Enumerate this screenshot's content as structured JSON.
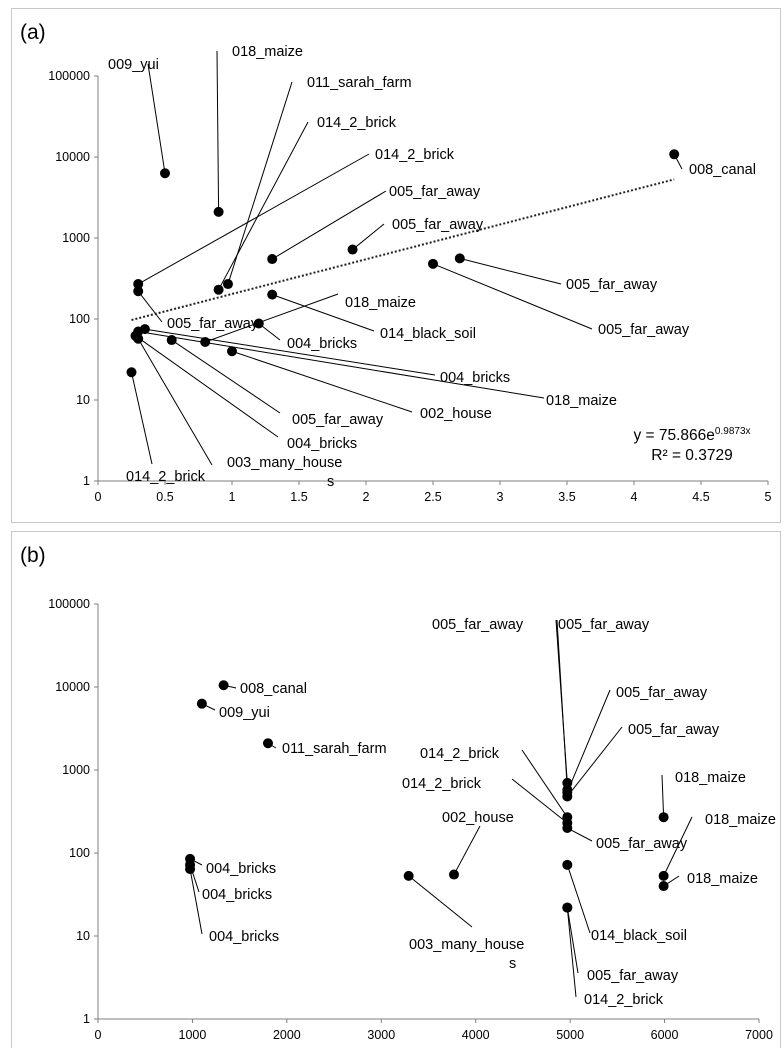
{
  "chart_data": [
    {
      "panel_label": "(a)",
      "type": "scatter",
      "title": "",
      "xlabel": "",
      "ylabel": "",
      "xlim": [
        0,
        5
      ],
      "ylim": [
        1,
        100000
      ],
      "y_scale": "log",
      "x_ticks": [
        "0",
        "0.5",
        "1",
        "1.5",
        "2",
        "2.5",
        "3",
        "3.5",
        "4",
        "4.5",
        "5"
      ],
      "y_ticks": [
        "1",
        "10",
        "100",
        "1000",
        "10000",
        "100000"
      ],
      "grid": false,
      "points": [
        {
          "x": 0.5,
          "y": 6300,
          "label": "009_yui"
        },
        {
          "x": 0.9,
          "y": 2100,
          "label": "018_maize"
        },
        {
          "x": 0.97,
          "y": 270,
          "label": "011_sarah_farm"
        },
        {
          "x": 0.9,
          "y": 230,
          "label": "014_2_brick"
        },
        {
          "x": 0.3,
          "y": 270,
          "label": "014_2_brick"
        },
        {
          "x": 1.3,
          "y": 550,
          "label": "005_far_away"
        },
        {
          "x": 1.9,
          "y": 720,
          "label": "005_far_away"
        },
        {
          "x": 4.3,
          "y": 10800,
          "label": "008_canal"
        },
        {
          "x": 2.7,
          "y": 560,
          "label": "005_far_away"
        },
        {
          "x": 2.5,
          "y": 480,
          "label": "005_far_away"
        },
        {
          "x": 0.3,
          "y": 220,
          "label": "005_far_away"
        },
        {
          "x": 1.3,
          "y": 200,
          "label": "014_black_soil"
        },
        {
          "x": 0.8,
          "y": 52,
          "label": "018_maize"
        },
        {
          "x": 1.2,
          "y": 88,
          "label": "004_bricks"
        },
        {
          "x": 0.35,
          "y": 75,
          "label": "004_bricks"
        },
        {
          "x": 0.3,
          "y": 70,
          "label": "018_maize"
        },
        {
          "x": 1.0,
          "y": 40,
          "label": "002_house"
        },
        {
          "x": 0.55,
          "y": 55,
          "label": "005_far_away"
        },
        {
          "x": 0.28,
          "y": 62,
          "label": "004_bricks"
        },
        {
          "x": 0.3,
          "y": 57,
          "label": "003_many_houses"
        },
        {
          "x": 0.25,
          "y": 22,
          "label": "014_2_brick"
        }
      ],
      "trendline": {
        "type": "exponential",
        "a": 75.866,
        "b": 0.9873,
        "x_range": [
          0.25,
          4.3
        ],
        "style": "dotted"
      },
      "equation": {
        "base": "y = 75.866e",
        "exponent": "0.9873x",
        "r2": "R² = 0.3729"
      }
    },
    {
      "panel_label": "(b)",
      "type": "scatter",
      "title": "",
      "xlabel": "",
      "ylabel": "",
      "xlim": [
        0,
        7000
      ],
      "ylim": [
        1,
        100000
      ],
      "y_scale": "log",
      "x_ticks": [
        "0",
        "1000",
        "2000",
        "3000",
        "4000",
        "5000",
        "6000",
        "7000"
      ],
      "y_ticks": [
        "1",
        "10",
        "100",
        "1000",
        "10000",
        "100000"
      ],
      "grid": false,
      "points": [
        {
          "x": 1330,
          "y": 10500,
          "label": "008_canal"
        },
        {
          "x": 1100,
          "y": 6300,
          "label": "009_yui"
        },
        {
          "x": 1800,
          "y": 2100,
          "label": "011_sarah_farm"
        },
        {
          "x": 975,
          "y": 85,
          "label": "004_bricks"
        },
        {
          "x": 975,
          "y": 72,
          "label": "004_bricks"
        },
        {
          "x": 975,
          "y": 64,
          "label": "004_bricks"
        },
        {
          "x": 3290,
          "y": 53,
          "label": "003_many_houses"
        },
        {
          "x": 3770,
          "y": 55,
          "label": "002_house"
        },
        {
          "x": 4970,
          "y": 700,
          "label": "005_far_away"
        },
        {
          "x": 4970,
          "y": 580,
          "label": "005_far_away"
        },
        {
          "x": 4970,
          "y": 540,
          "label": "005_far_away"
        },
        {
          "x": 4970,
          "y": 480,
          "label": "005_far_away"
        },
        {
          "x": 4970,
          "y": 270,
          "label": "014_2_brick"
        },
        {
          "x": 4970,
          "y": 230,
          "label": "014_2_brick"
        },
        {
          "x": 4970,
          "y": 200,
          "label": "005_far_away"
        },
        {
          "x": 4970,
          "y": 72,
          "label": "014_black_soil"
        },
        {
          "x": 4970,
          "y": 22,
          "label": "005_far_away"
        },
        {
          "x": 4970,
          "y": 22,
          "label": "014_2_brick"
        },
        {
          "x": 5990,
          "y": 270,
          "label": "018_maize"
        },
        {
          "x": 5990,
          "y": 53,
          "label": "018_maize"
        },
        {
          "x": 5990,
          "y": 40,
          "label": "018_maize"
        }
      ]
    }
  ]
}
